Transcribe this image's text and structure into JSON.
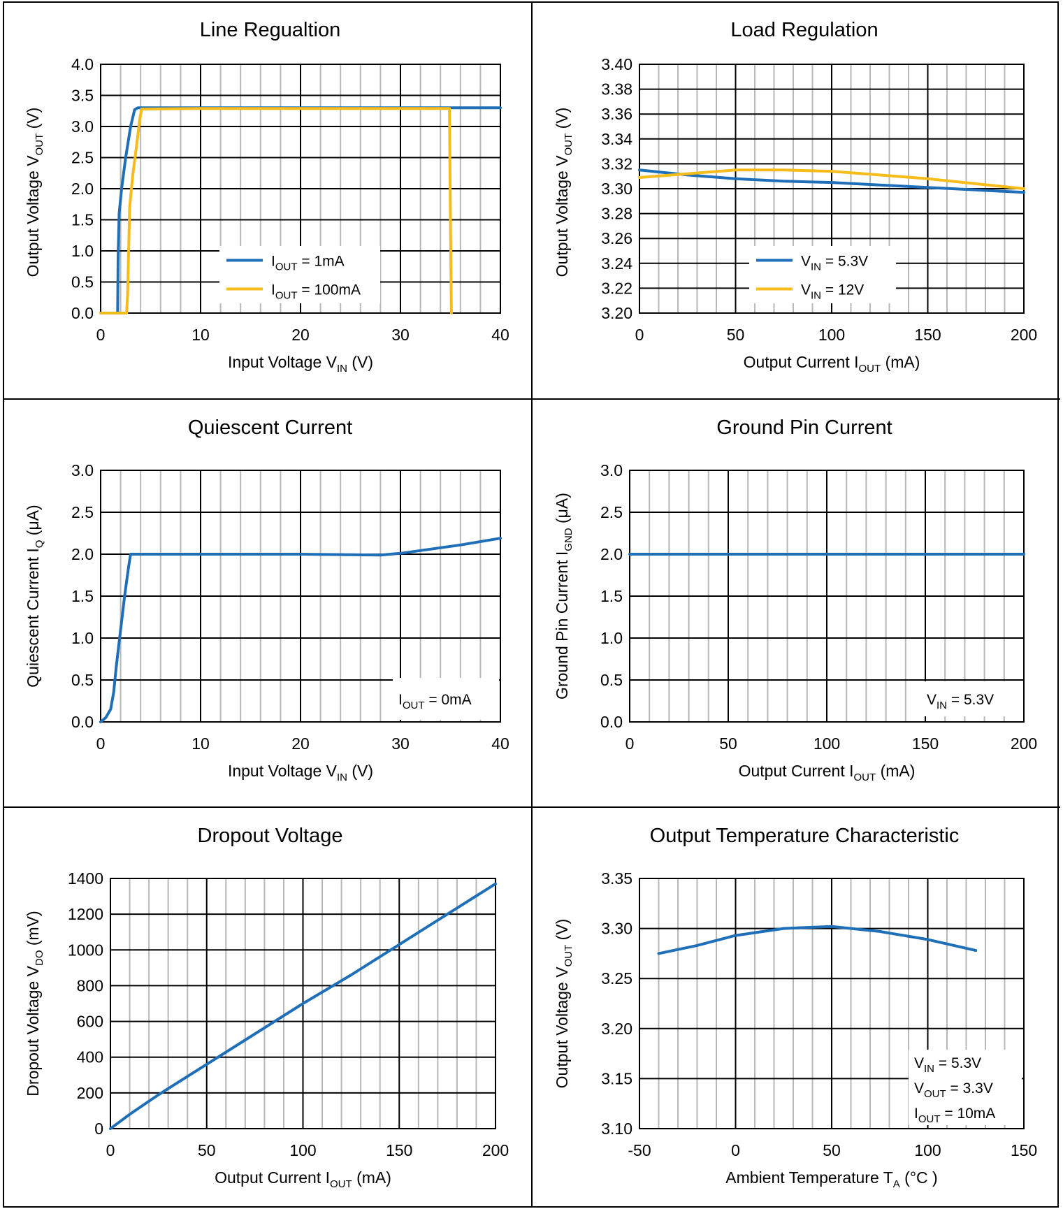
{
  "colors": {
    "blue": "#1f6fb8",
    "gold": "#f5bc1a",
    "minor_grid": "#b8b8b8",
    "major_grid": "#000000"
  },
  "chart_data": [
    {
      "type": "line",
      "title": "Line Regualtion",
      "xlabel": {
        "main": "Input Voltage V",
        "sub": "IN",
        "tail": " (V)"
      },
      "ylabel": {
        "main": "Output Voltage V",
        "sub": "OUT",
        "tail": " (V)"
      },
      "xlim": [
        0,
        40
      ],
      "ylim": [
        0,
        4
      ],
      "xticks": [
        0,
        10,
        20,
        30,
        40
      ],
      "yticks": [
        0,
        0.5,
        1,
        1.5,
        2,
        2.5,
        3,
        3.5,
        4
      ],
      "ytick_labels": [
        "0.0",
        "0.5",
        "1.0",
        "1.5",
        "2.0",
        "2.5",
        "3.0",
        "3.5",
        "4.0"
      ],
      "xtick_labels": [
        "0",
        "10",
        "20",
        "30",
        "40"
      ],
      "x_minor": 2,
      "grid": true,
      "legend": {
        "placement": "center",
        "entries": [
          {
            "main": "I",
            "sub": "OUT",
            "tail": " = 1mA",
            "color": "#1f6fb8"
          },
          {
            "main": "I",
            "sub": "OUT",
            "tail": " = 100mA",
            "color": "#f5bc1a"
          }
        ]
      },
      "series": [
        {
          "name": "IOUT = 1mA",
          "color": "#1f6fb8",
          "x": [
            0,
            1.7,
            1.75,
            1.85,
            2.1,
            2.5,
            3.0,
            3.4,
            3.7,
            10,
            20,
            30,
            35,
            40
          ],
          "y": [
            0,
            0,
            0.9,
            1.6,
            2.0,
            2.5,
            3.0,
            3.27,
            3.3,
            3.3,
            3.3,
            3.3,
            3.3,
            3.3
          ]
        },
        {
          "name": "IOUT = 100mA",
          "color": "#f5bc1a",
          "x": [
            0,
            2.6,
            2.7,
            2.9,
            3.2,
            3.6,
            3.9,
            4.1,
            10,
            20,
            30,
            34.9,
            35.0,
            35.1
          ],
          "y": [
            0,
            0,
            0.3,
            1.7,
            2.2,
            2.7,
            3.1,
            3.28,
            3.29,
            3.29,
            3.29,
            3.29,
            1.5,
            0
          ]
        }
      ]
    },
    {
      "type": "line",
      "title": "Load Regulation",
      "xlabel": {
        "main": "Output Current I",
        "sub": "OUT",
        "tail": " (mA)"
      },
      "ylabel": {
        "main": "Output Voltage V",
        "sub": "OUT",
        "tail": " (V)"
      },
      "xlim": [
        0,
        200
      ],
      "ylim": [
        3.2,
        3.4
      ],
      "xticks": [
        0,
        50,
        100,
        150,
        200
      ],
      "yticks": [
        3.2,
        3.22,
        3.24,
        3.26,
        3.28,
        3.3,
        3.32,
        3.34,
        3.36,
        3.38,
        3.4
      ],
      "ytick_labels": [
        "3.20",
        "3.22",
        "3.24",
        "3.26",
        "3.28",
        "3.30",
        "3.32",
        "3.34",
        "3.36",
        "3.38",
        "3.40"
      ],
      "xtick_labels": [
        "0",
        "50",
        "100",
        "150",
        "200"
      ],
      "x_minor": 10,
      "grid": true,
      "legend": {
        "placement": "bottom-right",
        "entries": [
          {
            "main": "V",
            "sub": "IN",
            "tail": " = 5.3V",
            "color": "#1f6fb8"
          },
          {
            "main": "V",
            "sub": "IN",
            "tail": " = 12V",
            "color": "#f5bc1a"
          }
        ]
      },
      "series": [
        {
          "name": "VIN = 5.3V",
          "color": "#1f6fb8",
          "x": [
            0,
            25,
            50,
            75,
            100,
            125,
            150,
            175,
            200
          ],
          "y": [
            3.315,
            3.311,
            3.308,
            3.306,
            3.305,
            3.303,
            3.301,
            3.299,
            3.297
          ]
        },
        {
          "name": "VIN = 12V",
          "color": "#f5bc1a",
          "x": [
            0,
            25,
            50,
            75,
            100,
            125,
            150,
            175,
            200
          ],
          "y": [
            3.309,
            3.312,
            3.315,
            3.315,
            3.314,
            3.311,
            3.308,
            3.304,
            3.3
          ]
        }
      ]
    },
    {
      "type": "line",
      "title": "Quiescent Current",
      "xlabel": {
        "main": "Input Voltage V",
        "sub": "IN",
        "tail": " (V)"
      },
      "ylabel": {
        "main": "Quiescent Current I",
        "sub": "Q",
        "tail": " (μA)"
      },
      "xlim": [
        0,
        40
      ],
      "ylim": [
        0,
        3
      ],
      "xticks": [
        0,
        10,
        20,
        30,
        40
      ],
      "yticks": [
        0,
        0.5,
        1,
        1.5,
        2,
        2.5,
        3
      ],
      "ytick_labels": [
        "0.0",
        "0.5",
        "1.0",
        "1.5",
        "2.0",
        "2.5",
        "3.0"
      ],
      "xtick_labels": [
        "0",
        "10",
        "20",
        "30",
        "40"
      ],
      "x_minor": 2,
      "grid": true,
      "legend": {
        "placement": "bottom-right",
        "entries": [
          {
            "main": "I",
            "sub": "OUT",
            "tail": " = 0mA"
          }
        ]
      },
      "series": [
        {
          "color": "#1f6fb8",
          "x": [
            0,
            0.5,
            1.0,
            1.3,
            1.6,
            2.0,
            2.4,
            2.8,
            3.0,
            10,
            20,
            28,
            30,
            33,
            36,
            40
          ],
          "y": [
            0,
            0.05,
            0.15,
            0.35,
            0.7,
            1.1,
            1.5,
            1.85,
            2.0,
            2.0,
            2.0,
            1.99,
            2.01,
            2.06,
            2.11,
            2.19
          ]
        }
      ]
    },
    {
      "type": "line",
      "title": "Ground Pin Current",
      "xlabel": {
        "main": "Output Current I",
        "sub": "OUT",
        "tail": " (mA)"
      },
      "ylabel": {
        "main": "Ground Pin Current I",
        "sub": "GND",
        "tail": " (μA)"
      },
      "xlim": [
        0,
        200
      ],
      "ylim": [
        0,
        3
      ],
      "xticks": [
        0,
        50,
        100,
        150,
        200
      ],
      "yticks": [
        0,
        0.5,
        1,
        1.5,
        2,
        2.5,
        3
      ],
      "ytick_labels": [
        "0.0",
        "0.5",
        "1.0",
        "1.5",
        "2.0",
        "2.5",
        "3.0"
      ],
      "xtick_labels": [
        "0",
        "50",
        "100",
        "150",
        "200"
      ],
      "x_minor": 10,
      "grid": true,
      "legend": {
        "placement": "bottom-right",
        "entries": [
          {
            "main": "V",
            "sub": "IN",
            "tail": " = 5.3V"
          }
        ]
      },
      "series": [
        {
          "color": "#1f6fb8",
          "x": [
            0,
            50,
            100,
            150,
            200
          ],
          "y": [
            2.0,
            2.0,
            2.0,
            2.0,
            2.0
          ]
        }
      ]
    },
    {
      "type": "line",
      "title": "Dropout Voltage",
      "xlabel": {
        "main": "Output Current I",
        "sub": "OUT",
        "tail": " (mA)"
      },
      "ylabel": {
        "main": "Dropout Voltage V",
        "sub": "DO",
        "tail": " (mV)"
      },
      "xlim": [
        0,
        200
      ],
      "ylim": [
        0,
        1400
      ],
      "xticks": [
        0,
        50,
        100,
        150,
        200
      ],
      "yticks": [
        0,
        200,
        400,
        600,
        800,
        1000,
        1200,
        1400
      ],
      "ytick_labels": [
        "0",
        "200",
        "400",
        "600",
        "800",
        "1000",
        "1200",
        "1400"
      ],
      "xtick_labels": [
        "0",
        "50",
        "100",
        "150",
        "200"
      ],
      "x_minor": 10,
      "grid": true,
      "legend": null,
      "series": [
        {
          "color": "#1f6fb8",
          "x": [
            0,
            5,
            10,
            25,
            50,
            75,
            100,
            125,
            150,
            175,
            200
          ],
          "y": [
            0,
            40,
            80,
            190,
            360,
            530,
            700,
            860,
            1030,
            1200,
            1370
          ]
        }
      ]
    },
    {
      "type": "line",
      "title": "Output Temperature Characteristic",
      "xlabel": {
        "main": "Ambient Temperature T",
        "sub": "A",
        "tail": " (°C )"
      },
      "ylabel": {
        "main": "Output Voltage V",
        "sub": "OUT",
        "tail": " (V)"
      },
      "xlim": [
        -50,
        150
      ],
      "ylim": [
        3.1,
        3.35
      ],
      "xticks": [
        -50,
        0,
        50,
        100,
        150
      ],
      "yticks": [
        3.1,
        3.15,
        3.2,
        3.25,
        3.3,
        3.35
      ],
      "ytick_labels": [
        "3.10",
        "3.15",
        "3.20",
        "3.25",
        "3.30",
        "3.35"
      ],
      "xtick_labels": [
        "-50",
        "0",
        "50",
        "100",
        "150"
      ],
      "x_minor": 10,
      "grid": true,
      "legend": {
        "placement": "bottom-right",
        "entries": [
          {
            "main": "V",
            "sub": "IN",
            "tail": " = 5.3V"
          },
          {
            "main": "V",
            "sub": "OUT",
            "tail": " = 3.3V"
          },
          {
            "main": "I",
            "sub": "OUT",
            "tail": " = 10mA"
          }
        ]
      },
      "series": [
        {
          "color": "#1f6fb8",
          "x": [
            -40,
            -20,
            0,
            25,
            50,
            75,
            100,
            125
          ],
          "y": [
            3.275,
            3.283,
            3.293,
            3.3,
            3.302,
            3.297,
            3.289,
            3.278
          ]
        }
      ]
    }
  ]
}
